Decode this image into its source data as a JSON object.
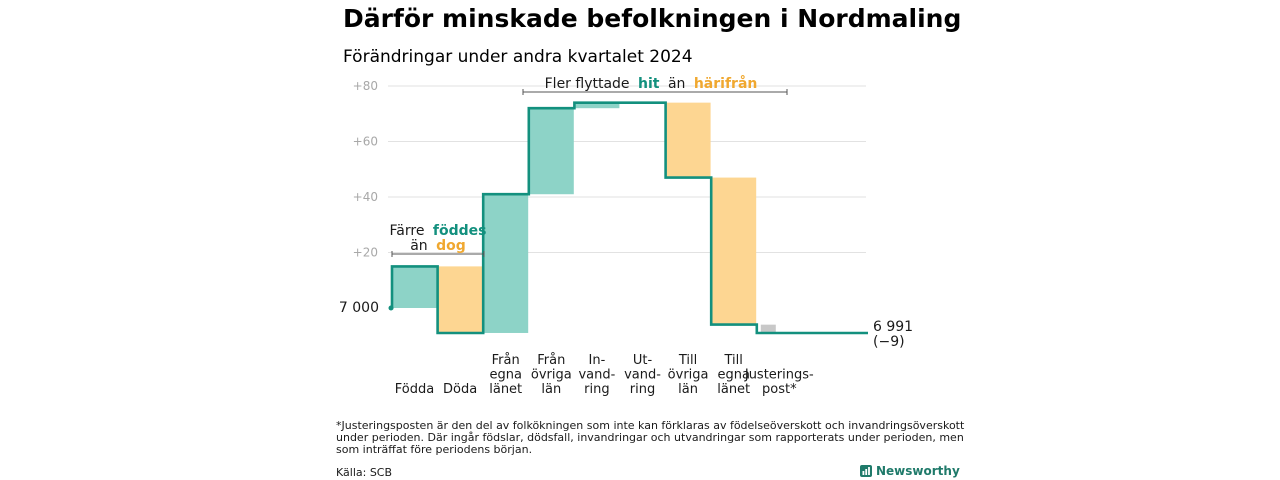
{
  "title": "Därför minskade befolkningen i Nordmaling",
  "subtitle": "Förändringar under andra kvartalet 2024",
  "colors": {
    "teal_line": "#13907e",
    "teal_fill": "#8dd3c7",
    "orange_fill": "#fdd692",
    "orange_text": "#f0a830",
    "teal_text": "#13907e",
    "grey_fill": "#c8c8c8",
    "grid": "#e2e2e2"
  },
  "chart_data": {
    "type": "waterfall",
    "baseline_label": "7 000",
    "ylim": [
      -9,
      80
    ],
    "y_ticks": [
      {
        "value": 20,
        "label": "+20"
      },
      {
        "value": 40,
        "label": "+40"
      },
      {
        "value": 60,
        "label": "+60"
      },
      {
        "value": 80,
        "label": "+80"
      }
    ],
    "steps": [
      {
        "label_lines": [
          "Födda"
        ],
        "start": 0,
        "end": 15,
        "kind": "gain"
      },
      {
        "label_lines": [
          "Döda"
        ],
        "start": 15,
        "end": -9,
        "kind": "loss"
      },
      {
        "label_lines": [
          "Från",
          "egna",
          "länet"
        ],
        "start": -9,
        "end": 41,
        "kind": "gain"
      },
      {
        "label_lines": [
          "Från",
          "övriga",
          "län"
        ],
        "start": 41,
        "end": 72,
        "kind": "gain"
      },
      {
        "label_lines": [
          "In-",
          "vand-",
          "ring"
        ],
        "start": 72,
        "end": 74,
        "kind": "gain"
      },
      {
        "label_lines": [
          "Ut-",
          "vand-",
          "ring"
        ],
        "start": 74,
        "end": 74,
        "kind": "loss"
      },
      {
        "label_lines": [
          "Till",
          "övriga",
          "län"
        ],
        "start": 74,
        "end": 47,
        "kind": "loss"
      },
      {
        "label_lines": [
          "Till",
          "egna",
          "länet"
        ],
        "start": 47,
        "end": -6,
        "kind": "loss"
      },
      {
        "label_lines": [
          "Justerings-",
          "post*"
        ],
        "start": -6,
        "end": -9,
        "kind": "adjust"
      }
    ],
    "end_label": {
      "value_text": "6 991",
      "change_text": "(−9)"
    }
  },
  "annotations": {
    "births": {
      "line1_plain": "Färre",
      "line1_bold": "föddes",
      "line2_plain": "än",
      "line2_bold": "dog"
    },
    "migration": {
      "plain1": "Fler flyttade",
      "bold1": "hit",
      "plain2": "än",
      "bold2": "härifrån"
    }
  },
  "footnote": [
    "*Justeringsposten är den del av folkökningen som inte kan förklaras av födelseöverskott och invandringsöverskott",
    "under perioden. Där ingår födslar, dödsfall, invandringar och utvandringar som rapporterats under perioden, men",
    "som inträffat före periodens början."
  ],
  "source": "Källa: SCB",
  "brand": "Newsworthy"
}
